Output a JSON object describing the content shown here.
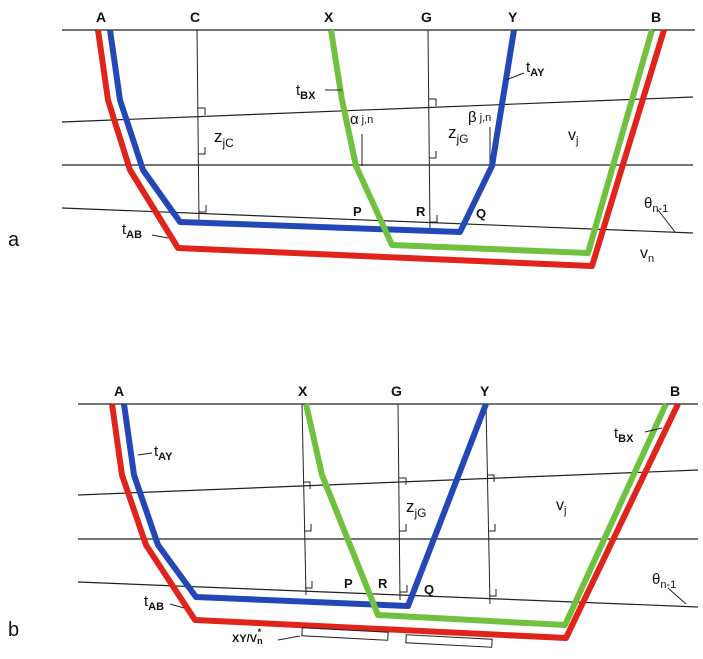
{
  "panel_a": {
    "panel_label": "a",
    "top_labels": {
      "A": "A",
      "C": "C",
      "X": "X",
      "G": "G",
      "Y": "Y",
      "B": "B"
    },
    "t_bx": {
      "t": "t",
      "sub": "BX"
    },
    "t_ay": {
      "t": "t",
      "sub": "AY"
    },
    "t_ab": {
      "t": "t",
      "sub": "AB"
    },
    "z_jc": {
      "z": "z",
      "sub": "jC"
    },
    "z_jg": {
      "z": "z",
      "sub": "jG"
    },
    "alpha": {
      "sym": "α",
      "sub": "j,n"
    },
    "beta": {
      "sym": "β",
      "sub": "j,n"
    },
    "v_j": {
      "v": "v",
      "sub": "j"
    },
    "v_n": {
      "v": "v",
      "sub": "n"
    },
    "theta": {
      "sym": "θ",
      "sub": "n-1"
    },
    "P": "P",
    "R": "R",
    "Q": "Q"
  },
  "panel_b": {
    "panel_label": "b",
    "top_labels": {
      "A": "A",
      "X": "X",
      "G": "G",
      "Y": "Y",
      "B": "B"
    },
    "t_ay": {
      "t": "t",
      "sub": "AY"
    },
    "t_bx": {
      "t": "t",
      "sub": "BX"
    },
    "t_ab": {
      "t": "t",
      "sub": "AB"
    },
    "z_jg": {
      "z": "z",
      "sub": "jG"
    },
    "v_j": {
      "v": "v",
      "sub": "j"
    },
    "theta": {
      "sym": "θ",
      "sub": "n-1"
    },
    "xy_vn": {
      "main": "XY/V",
      "sub": "n",
      "sup": "*"
    },
    "P": "P",
    "R": "R",
    "Q": "Q"
  },
  "colors": {
    "red": "#e0241b",
    "blue": "#2347b6",
    "green": "#6fc13f"
  }
}
